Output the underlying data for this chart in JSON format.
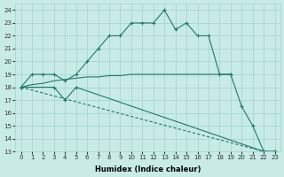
{
  "xlabel": "Humidex (Indice chaleur)",
  "xlim": [
    -0.5,
    23.5
  ],
  "ylim": [
    13,
    24.5
  ],
  "yticks": [
    13,
    14,
    15,
    16,
    17,
    18,
    19,
    20,
    21,
    22,
    23,
    24
  ],
  "xticks": [
    0,
    1,
    2,
    3,
    4,
    5,
    6,
    7,
    8,
    9,
    10,
    11,
    12,
    13,
    14,
    15,
    16,
    17,
    18,
    19,
    20,
    21,
    22,
    23
  ],
  "bg_color": "#c8ebe5",
  "grid_color": "#a0d4cc",
  "line_color": "#1e7a68",
  "series1_x": [
    0,
    1,
    2,
    3,
    4,
    5,
    6,
    7,
    8,
    9,
    10,
    11,
    12,
    13,
    14,
    15,
    16,
    17,
    18,
    19
  ],
  "series1_y": [
    18,
    19,
    19,
    19,
    18.5,
    19,
    20,
    21,
    22,
    22,
    23,
    23,
    23,
    24,
    22.5,
    23,
    22,
    22,
    19,
    19
  ],
  "series2_x": [
    0,
    3,
    4,
    5,
    22,
    23
  ],
  "series2_y": [
    18,
    18,
    17,
    18,
    13,
    13
  ],
  "series3_x": [
    0,
    1,
    2,
    3,
    4,
    5,
    6,
    7,
    8,
    9,
    10,
    11,
    12,
    13,
    14,
    15,
    16,
    17,
    18,
    19,
    20,
    21,
    22,
    23
  ],
  "series3_y": [
    18,
    18.2,
    18.3,
    18.5,
    18.6,
    18.7,
    18.8,
    18.8,
    18.9,
    18.9,
    19,
    19,
    19,
    19,
    19,
    19,
    19,
    19,
    19,
    19,
    16.5,
    15.0,
    13.0,
    13.0
  ],
  "series3_markers": [
    0,
    19,
    20,
    21,
    22,
    23
  ],
  "series4_x": [
    0,
    22
  ],
  "series4_y": [
    18,
    13
  ]
}
